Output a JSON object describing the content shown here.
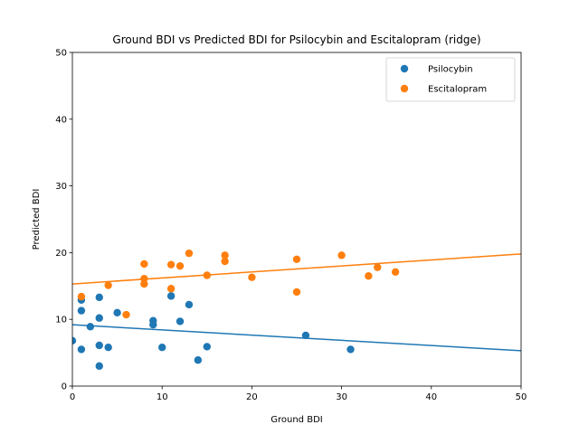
{
  "chart_data": {
    "type": "scatter",
    "title": "Ground BDI vs Predicted BDI for Psilocybin and Escitalopram (ridge)",
    "xlabel": "Ground BDI",
    "ylabel": "Predicted BDI",
    "xlim": [
      0,
      50
    ],
    "ylim": [
      0,
      50
    ],
    "xticks": [
      "0",
      "10",
      "20",
      "30",
      "40",
      "50"
    ],
    "yticks": [
      "0",
      "10",
      "20",
      "30",
      "40",
      "50"
    ],
    "grid": false,
    "legend": "top-right",
    "series": [
      {
        "name": "Psilocybin",
        "color": "#1f77b4",
        "points": [
          [
            0,
            6.8
          ],
          [
            1,
            12.9
          ],
          [
            1,
            11.3
          ],
          [
            1,
            5.5
          ],
          [
            2,
            8.9
          ],
          [
            3,
            13.3
          ],
          [
            3,
            10.2
          ],
          [
            3,
            6.1
          ],
          [
            3,
            3.0
          ],
          [
            4,
            5.8
          ],
          [
            5,
            11.0
          ],
          [
            9,
            9.8
          ],
          [
            9,
            9.2
          ],
          [
            10,
            5.8
          ],
          [
            11,
            13.5
          ],
          [
            12,
            9.7
          ],
          [
            13,
            12.2
          ],
          [
            14,
            3.9
          ],
          [
            15,
            5.9
          ],
          [
            26,
            7.6
          ],
          [
            31,
            5.5
          ]
        ],
        "fit_line": [
          [
            0,
            9.2
          ],
          [
            50,
            5.3
          ]
        ]
      },
      {
        "name": "Escitalopram",
        "color": "#ff7f0e",
        "points": [
          [
            1,
            13.4
          ],
          [
            4,
            15.1
          ],
          [
            6,
            10.7
          ],
          [
            8,
            18.3
          ],
          [
            8,
            16.1
          ],
          [
            8,
            15.3
          ],
          [
            11,
            18.2
          ],
          [
            11,
            14.6
          ],
          [
            12,
            18.0
          ],
          [
            13,
            19.9
          ],
          [
            15,
            16.6
          ],
          [
            17,
            19.6
          ],
          [
            17,
            18.7
          ],
          [
            20,
            16.3
          ],
          [
            25,
            19.0
          ],
          [
            25,
            14.1
          ],
          [
            30,
            19.6
          ],
          [
            33,
            16.5
          ],
          [
            34,
            17.8
          ],
          [
            36,
            17.1
          ]
        ],
        "fit_line": [
          [
            0,
            15.3
          ],
          [
            50,
            19.8
          ]
        ]
      }
    ]
  }
}
